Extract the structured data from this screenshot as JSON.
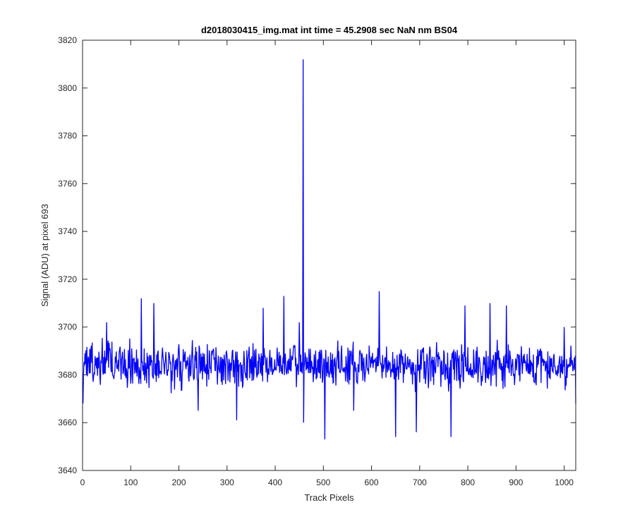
{
  "chart_data": {
    "type": "line",
    "title": "d2018030415_img.mat int time = 45.2908 sec  NaN nm BS04",
    "xlabel": "Track Pixels",
    "ylabel": "Signal (ADU) at pixel 693",
    "xlim": [
      0,
      1024
    ],
    "ylim": [
      3640,
      3820
    ],
    "xticks": [
      "0",
      "100",
      "200",
      "300",
      "400",
      "500",
      "600",
      "700",
      "800",
      "900",
      "1000"
    ],
    "yticks": [
      "3640",
      "3660",
      "3680",
      "3700",
      "3720",
      "3740",
      "3760",
      "3780",
      "3800",
      "3820"
    ],
    "grid": false,
    "series": [
      {
        "color": "#0000ff",
        "baseline": 3684,
        "noise_amplitude": 8,
        "n_points": 1024,
        "x_start": 1,
        "notable_points": [
          {
            "x": 1,
            "y": 3668
          },
          {
            "x": 50,
            "y": 3702
          },
          {
            "x": 122,
            "y": 3712
          },
          {
            "x": 148,
            "y": 3710
          },
          {
            "x": 240,
            "y": 3665
          },
          {
            "x": 320,
            "y": 3661
          },
          {
            "x": 335,
            "y": 3690
          },
          {
            "x": 375,
            "y": 3708
          },
          {
            "x": 418,
            "y": 3713
          },
          {
            "x": 450,
            "y": 3702
          },
          {
            "x": 458,
            "y": 3812
          },
          {
            "x": 459,
            "y": 3660
          },
          {
            "x": 503,
            "y": 3653
          },
          {
            "x": 563,
            "y": 3665
          },
          {
            "x": 616,
            "y": 3715
          },
          {
            "x": 650,
            "y": 3654
          },
          {
            "x": 693,
            "y": 3656
          },
          {
            "x": 765,
            "y": 3654
          },
          {
            "x": 794,
            "y": 3709
          },
          {
            "x": 846,
            "y": 3710
          },
          {
            "x": 880,
            "y": 3709
          },
          {
            "x": 1000,
            "y": 3700
          },
          {
            "x": 1024,
            "y": 3668
          }
        ]
      }
    ]
  },
  "colors": {
    "axis": "#262626",
    "line": "#0000ff",
    "background": "#ffffff"
  }
}
